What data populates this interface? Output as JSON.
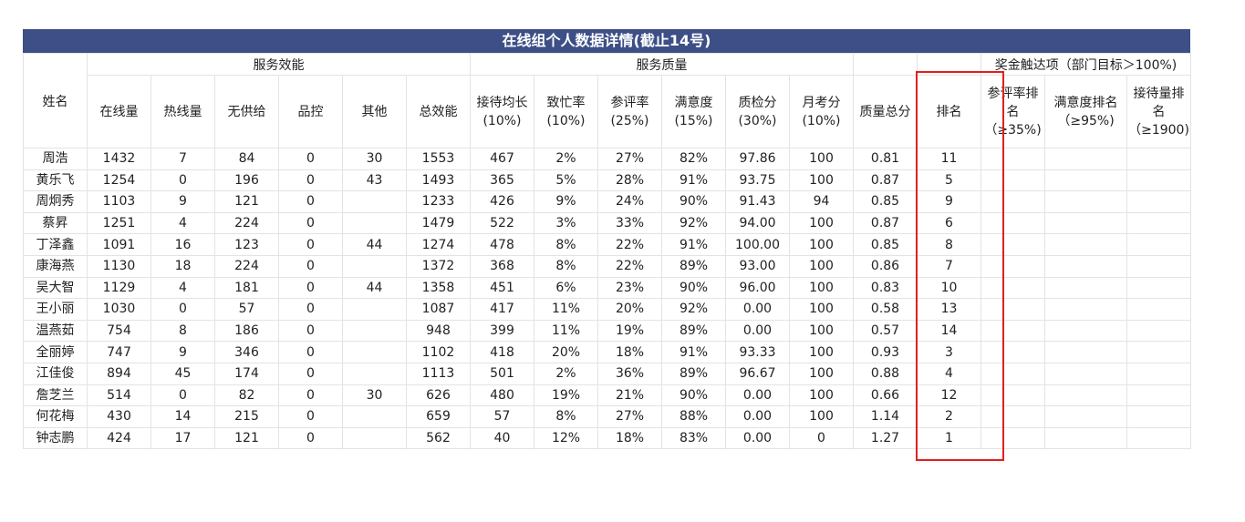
{
  "title": "在线组个人数据详情(截止14号)",
  "headers": {
    "name": "姓名",
    "group_efficiency": "服务效能",
    "group_quality": "服务质量",
    "group_reward": "奖金触达项（部门目标＞100%)",
    "columns": [
      "在线量",
      "热线量",
      "无供给",
      "品控",
      "其他",
      "总效能",
      "接待均长(10%)",
      "致忙率(10%)",
      "参评率(25%)",
      "满意度(15%)",
      "质检分(30%)",
      "月考分(10%)",
      "质量总分",
      "排名",
      "参评率排名（≥35%)",
      "满意度排名（≥95%)",
      "接待量排名（≥1900)"
    ]
  },
  "rows": [
    [
      "周浩",
      "1432",
      "7",
      "84",
      "0",
      "30",
      "1553",
      "467",
      "2%",
      "27%",
      "82%",
      "97.86",
      "100",
      "0.81",
      "11",
      "",
      "",
      ""
    ],
    [
      "黄乐飞",
      "1254",
      "0",
      "196",
      "0",
      "43",
      "1493",
      "365",
      "5%",
      "28%",
      "91%",
      "93.75",
      "100",
      "0.87",
      "5",
      "",
      "",
      ""
    ],
    [
      "周炯秀",
      "1103",
      "9",
      "121",
      "0",
      "",
      "1233",
      "426",
      "9%",
      "24%",
      "90%",
      "91.43",
      "94",
      "0.85",
      "9",
      "",
      "",
      ""
    ],
    [
      "蔡昇",
      "1251",
      "4",
      "224",
      "0",
      "",
      "1479",
      "522",
      "3%",
      "33%",
      "92%",
      "94.00",
      "100",
      "0.87",
      "6",
      "",
      "",
      ""
    ],
    [
      "丁泽鑫",
      "1091",
      "16",
      "123",
      "0",
      "44",
      "1274",
      "478",
      "8%",
      "22%",
      "91%",
      "100.00",
      "100",
      "0.85",
      "8",
      "",
      "",
      ""
    ],
    [
      "康海燕",
      "1130",
      "18",
      "224",
      "0",
      "",
      "1372",
      "368",
      "8%",
      "22%",
      "89%",
      "93.00",
      "100",
      "0.86",
      "7",
      "",
      "",
      ""
    ],
    [
      "吴大智",
      "1129",
      "4",
      "181",
      "0",
      "44",
      "1358",
      "451",
      "6%",
      "23%",
      "90%",
      "96.00",
      "100",
      "0.83",
      "10",
      "",
      "",
      ""
    ],
    [
      "王小丽",
      "1030",
      "0",
      "57",
      "0",
      "",
      "1087",
      "417",
      "11%",
      "20%",
      "92%",
      "0.00",
      "100",
      "0.58",
      "13",
      "",
      "",
      ""
    ],
    [
      "温燕茹",
      "754",
      "8",
      "186",
      "0",
      "",
      "948",
      "399",
      "11%",
      "19%",
      "89%",
      "0.00",
      "100",
      "0.57",
      "14",
      "",
      "",
      ""
    ],
    [
      "全丽婷",
      "747",
      "9",
      "346",
      "0",
      "",
      "1102",
      "418",
      "20%",
      "18%",
      "91%",
      "93.33",
      "100",
      "0.93",
      "3",
      "",
      "",
      ""
    ],
    [
      "江佳俊",
      "894",
      "45",
      "174",
      "0",
      "",
      "1113",
      "501",
      "2%",
      "36%",
      "89%",
      "96.67",
      "100",
      "0.88",
      "4",
      "",
      "",
      ""
    ],
    [
      "詹芝兰",
      "514",
      "0",
      "82",
      "0",
      "30",
      "626",
      "480",
      "19%",
      "21%",
      "90%",
      "0.00",
      "100",
      "0.66",
      "12",
      "",
      "",
      ""
    ],
    [
      "何花梅",
      "430",
      "14",
      "215",
      "0",
      "",
      "659",
      "57",
      "8%",
      "27%",
      "88%",
      "0.00",
      "100",
      "1.14",
      "2",
      "",
      "",
      ""
    ],
    [
      "钟志鹏",
      "424",
      "17",
      "121",
      "0",
      "",
      "562",
      "40",
      "12%",
      "18%",
      "83%",
      "0.00",
      "0",
      "1.27",
      "1",
      "",
      "",
      ""
    ]
  ],
  "colors": {
    "title_bg": "#3d4f86",
    "highlight": "#e02020",
    "grid": "#e3e3e3"
  }
}
